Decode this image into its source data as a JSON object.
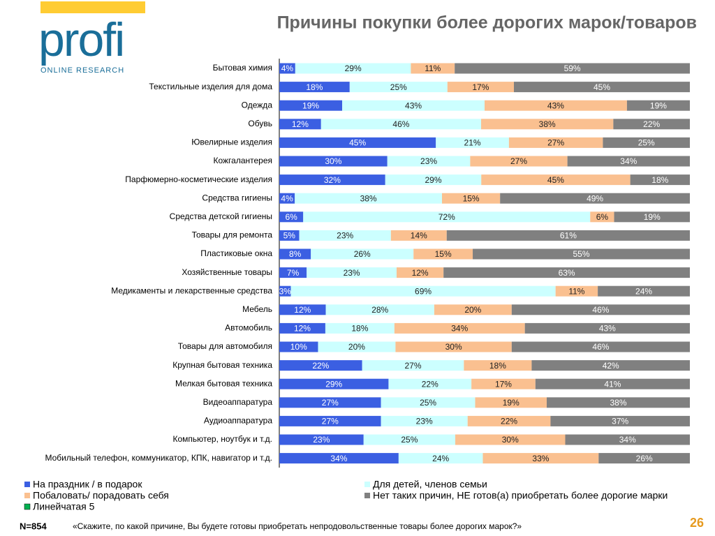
{
  "header": {
    "title": "Причины покупки более дорогих марок/товаров",
    "logo": "profi",
    "logo_sub": "ONLINE RESEARCH"
  },
  "footer": {
    "n": "N=854",
    "question": "«Скажите, по какой причине, Вы будете готовы приобретать непродовольственные товары более дорогих марок?»",
    "page": "26"
  },
  "chart_data": {
    "type": "stacked100_barh",
    "categories": [
      "Бытовая химия",
      "Текстильные изделия для дома",
      "Одежда",
      "Обувь",
      "Ювелирные изделия",
      "Кожгалантерея",
      "Парфюмерно-косметические изделия",
      "Средства гигиены",
      "Средства детской гигиены",
      "Товары для ремонта",
      "Пластиковые окна",
      "Хозяйственные товары",
      "Медикаменты и лекарственные средства",
      "Мебель",
      "Автомобиль",
      "Товары для автомобиля",
      "Крупная бытовая техника",
      "Мелкая бытовая техника",
      "Видеоаппаратура",
      "Аудиоаппаратура",
      "Компьютер, ноутбук и т.д.",
      "Мобильный телефон, коммуникатор, КПК, навигатор и т.д."
    ],
    "series": [
      {
        "name": "На праздник / в подарок",
        "color": "#3b5fe2",
        "values": [
          4,
          18,
          19,
          12,
          45,
          30,
          32,
          4,
          6,
          5,
          8,
          7,
          3,
          12,
          12,
          10,
          22,
          29,
          27,
          27,
          23,
          34
        ],
        "value_labels": [
          "4%",
          "18%",
          "19%",
          "12%",
          "45%",
          "30%",
          "32%",
          "4%",
          "6%",
          "5%",
          "8%",
          "7%",
          "3%",
          "12%",
          "12%",
          "10%",
          "22%",
          "29%",
          "27%",
          "27%",
          "23%",
          "34%"
        ]
      },
      {
        "name": "Для детей, членов семьи",
        "color": "#ccffff",
        "values": [
          29,
          25,
          43,
          46,
          21,
          23,
          29,
          38,
          72,
          23,
          26,
          23,
          69,
          28,
          18,
          20,
          27,
          22,
          25,
          23,
          25,
          24
        ],
        "value_labels": [
          "29%",
          "25%",
          "43%",
          "46%",
          "21%",
          "23%",
          "29%",
          "38%",
          "72%",
          "23%",
          "26%",
          "23%",
          "69%",
          "28%",
          "18%",
          "20%",
          "27%",
          "22%",
          "25%",
          "23%",
          "25%",
          "24%"
        ]
      },
      {
        "name": "Побаловать/ порадовать себя",
        "color": "#fac090",
        "values": [
          11,
          17,
          43,
          38,
          27,
          27,
          45,
          15,
          6,
          14,
          15,
          12,
          11,
          20,
          34,
          30,
          18,
          17,
          19,
          22,
          30,
          33
        ],
        "value_labels": [
          "11%",
          "17%",
          "43%",
          "38%",
          "27%",
          "27%",
          "45%",
          "15%",
          "6%",
          "14%",
          "15%",
          "12%",
          "11%",
          "20%",
          "34%",
          "30%",
          "18%",
          "17%",
          "19%",
          "22%",
          "30%",
          "33%"
        ]
      },
      {
        "name": "Нет таких причин, НЕ готов(а) приобретать более дорогие марки",
        "color": "#808080",
        "values": [
          59,
          45,
          19,
          22,
          25,
          34,
          18,
          49,
          19,
          61,
          55,
          63,
          24,
          46,
          43,
          46,
          42,
          41,
          38,
          37,
          34,
          26
        ],
        "value_labels": [
          "59%",
          "45%",
          "19%",
          "22%",
          "25%",
          "34%",
          "18%",
          "49%",
          "19%",
          "61%",
          "55%",
          "63%",
          "24%",
          "46%",
          "43%",
          "46%",
          "42%",
          "41%",
          "38%",
          "37%",
          "34%",
          "26%"
        ]
      },
      {
        "name": "Линейчатая 5",
        "color": "#00b050",
        "values": [
          null,
          null,
          null,
          null,
          null,
          null,
          null,
          null,
          null,
          null,
          null,
          null,
          null,
          null,
          null,
          null,
          null,
          null,
          null,
          null,
          null,
          null
        ]
      }
    ]
  }
}
